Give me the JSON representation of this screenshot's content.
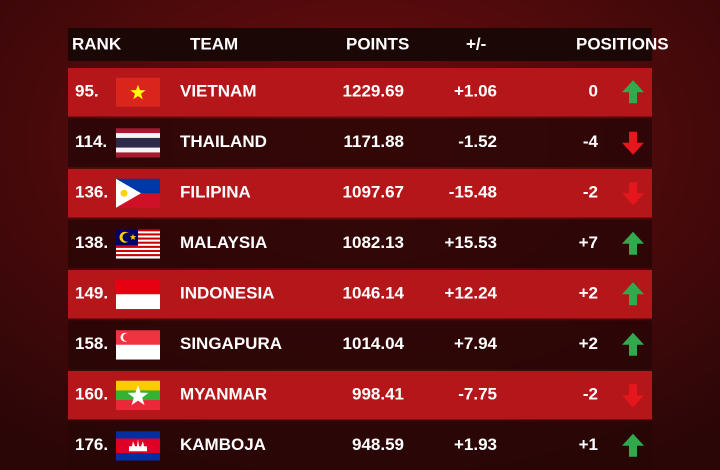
{
  "table": {
    "columns": [
      "RANK",
      "TEAM",
      "POINTS",
      "+/-",
      "POSITIONS"
    ],
    "rows": [
      {
        "rank": "95.",
        "team": "VIETNAM",
        "points": "1229.69",
        "change": "+1.06",
        "positions": "0",
        "trend": "up"
      },
      {
        "rank": "114.",
        "team": "THAILAND",
        "points": "1171.88",
        "change": "-1.52",
        "positions": "-4",
        "trend": "down"
      },
      {
        "rank": "136.",
        "team": "FILIPINA",
        "points": "1097.67",
        "change": "-15.48",
        "positions": "-2",
        "trend": "down"
      },
      {
        "rank": "138.",
        "team": "MALAYSIA",
        "points": "1082.13",
        "change": "+15.53",
        "positions": "+7",
        "trend": "up"
      },
      {
        "rank": "149.",
        "team": "INDONESIA",
        "points": "1046.14",
        "change": "+12.24",
        "positions": "+2",
        "trend": "up"
      },
      {
        "rank": "158.",
        "team": "SINGAPURA",
        "points": "1014.04",
        "change": "+7.94",
        "positions": "+2",
        "trend": "up"
      },
      {
        "rank": "160.",
        "team": "MYANMAR",
        "points": "998.41",
        "change": "-7.75",
        "positions": "-2",
        "trend": "down"
      },
      {
        "rank": "176.",
        "team": "KAMBOJA",
        "points": "948.59",
        "change": "+1.93",
        "positions": "+1",
        "trend": "up"
      }
    ]
  }
}
